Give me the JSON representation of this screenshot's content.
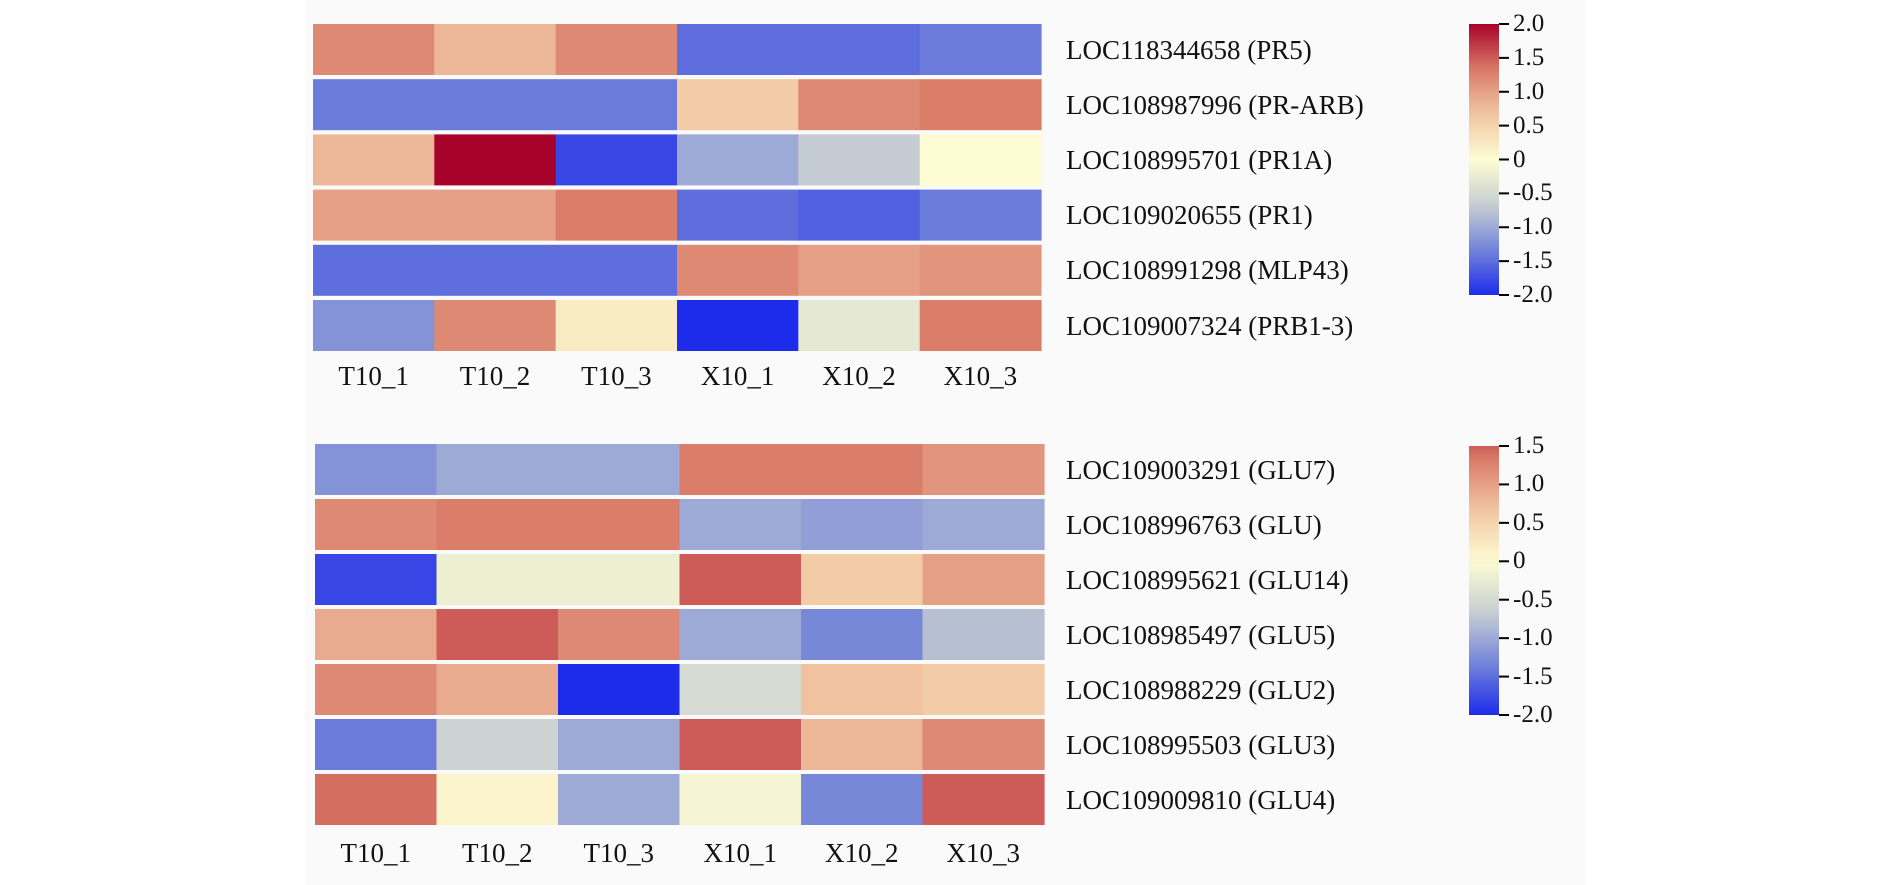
{
  "colormap": {
    "name": "coolwarm",
    "stops": [
      "#1d2cea",
      "#7384d9",
      "#c8cfd2",
      "#fdfcd3",
      "#f1c6a2",
      "#d97a67",
      "#a7022a"
    ]
  },
  "chart_data": [
    {
      "type": "heatmap",
      "columns": [
        "T10_1",
        "T10_2",
        "T10_3",
        "X10_1",
        "X10_2",
        "X10_3"
      ],
      "rows": [
        "LOC118344658 (PR5)",
        "LOC108987996 (PR-ARB)",
        "LOC108995701 (PR1A)",
        "LOC109020655 (PR1)",
        "LOC108991298 (MLP43)",
        "LOC109007324 (PRB1-3)"
      ],
      "values": [
        [
          1.2,
          0.8,
          1.2,
          -1.5,
          -1.5,
          -1.4
        ],
        [
          -1.4,
          -1.4,
          -1.4,
          0.6,
          1.2,
          1.3
        ],
        [
          0.8,
          2.0,
          -1.8,
          -1.0,
          -0.7,
          0.0
        ],
        [
          1.0,
          1.0,
          1.3,
          -1.5,
          -1.6,
          -1.4
        ],
        [
          -1.5,
          -1.5,
          -1.5,
          1.2,
          1.0,
          1.1
        ],
        [
          -1.2,
          1.2,
          0.2,
          -2.0,
          -0.3,
          1.3
        ]
      ],
      "vmin": -2.0,
      "vmax": 2.0,
      "colorbar_ticks": [
        "2.0",
        "1.5",
        "1.0",
        "0.5",
        "0",
        "-0.5",
        "-1.0",
        "-1.5",
        "-2.0"
      ]
    },
    {
      "type": "heatmap",
      "columns": [
        "T10_1",
        "T10_2",
        "T10_3",
        "X10_1",
        "X10_2",
        "X10_3"
      ],
      "rows": [
        "LOC109003291 (GLU7)",
        "LOC108996763 (GLU)",
        "LOC108995621 (GLU14)",
        "LOC108985497 (GLU5)",
        "LOC108988229 (GLU2)",
        "LOC108995503 (GLU3)",
        "LOC109009810 (GLU4)"
      ],
      "values": [
        [
          -1.2,
          -1.0,
          -1.0,
          1.3,
          1.3,
          1.1
        ],
        [
          1.2,
          1.3,
          1.3,
          -1.0,
          -1.1,
          -1.0
        ],
        [
          -1.8,
          -0.2,
          -0.2,
          1.5,
          0.6,
          1.0
        ],
        [
          0.9,
          1.5,
          1.2,
          -1.0,
          -1.3,
          -0.8
        ],
        [
          1.2,
          0.9,
          -2.0,
          -0.5,
          0.7,
          0.6
        ],
        [
          -1.4,
          -0.6,
          -1.0,
          1.5,
          0.8,
          1.2
        ],
        [
          1.4,
          0.1,
          -1.0,
          -0.1,
          -1.3,
          1.5
        ]
      ],
      "vmin": -2.0,
      "vmax": 1.5,
      "colorbar_ticks": [
        "1.5",
        "1.0",
        "0.5",
        "0",
        "-0.5",
        "-1.0",
        "-1.5",
        "-2.0"
      ]
    }
  ]
}
